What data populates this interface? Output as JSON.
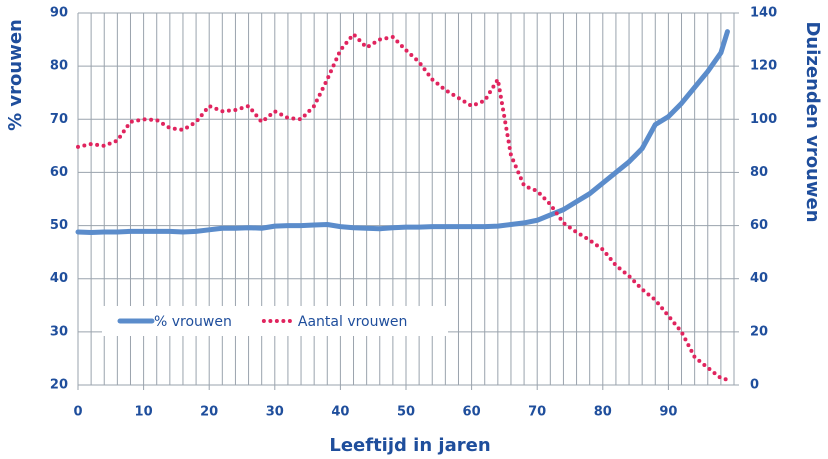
{
  "chart_data": {
    "type": "line",
    "x_label": "Leeftijd in jaren",
    "y_label": "% vrouwen",
    "y2_label": "Duizenden vrouwen",
    "x": [
      0,
      2,
      4,
      6,
      8,
      10,
      12,
      14,
      16,
      18,
      20,
      22,
      24,
      26,
      28,
      30,
      32,
      34,
      36,
      38,
      40,
      42,
      44,
      46,
      48,
      50,
      52,
      54,
      56,
      58,
      60,
      62,
      64,
      66,
      68,
      70,
      72,
      74,
      76,
      78,
      80,
      82,
      84,
      86,
      88,
      90,
      92,
      94,
      96,
      98,
      99
    ],
    "series": [
      {
        "name": "% vrouwen",
        "color": "#5b8ccb",
        "style": "solid",
        "axis": "y",
        "values": [
          48.8,
          48.7,
          48.8,
          48.8,
          48.9,
          48.9,
          48.9,
          48.9,
          48.8,
          48.9,
          49.2,
          49.5,
          49.5,
          49.6,
          49.5,
          49.9,
          50,
          50,
          50.1,
          50.2,
          49.8,
          49.6,
          49.5,
          49.4,
          49.6,
          49.7,
          49.7,
          49.8,
          49.8,
          49.8,
          49.8,
          49.8,
          49.9,
          50.2,
          50.5,
          51,
          52,
          53,
          54.5,
          56,
          58,
          60,
          62,
          64.5,
          69,
          70.5,
          73,
          76,
          79,
          82.5,
          86.5
        ]
      },
      {
        "name": "Aantal vrouwen",
        "color": "#e0245e",
        "style": "dotted",
        "axis": "y2",
        "values": [
          89.6,
          90.7,
          90,
          92,
          99,
          100,
          99.7,
          96.7,
          96,
          99,
          105,
          103,
          103.5,
          105,
          99,
          103,
          100.5,
          100,
          105,
          115,
          126,
          132,
          127,
          130,
          131,
          126,
          121.5,
          115,
          111,
          108,
          105,
          107,
          115,
          86.5,
          75,
          73,
          68,
          61,
          57.5,
          54.5,
          51,
          45,
          41,
          36,
          32,
          26,
          20,
          10.5,
          6.5,
          2.6,
          2
        ]
      }
    ],
    "xlim": [
      0,
      100
    ],
    "xticks": [
      0,
      10,
      20,
      30,
      40,
      50,
      60,
      70,
      80,
      90
    ],
    "x_grid_step": 2,
    "ylim": [
      20,
      90
    ],
    "yticks": [
      20,
      30,
      40,
      50,
      60,
      70,
      80,
      90
    ],
    "y2lim": [
      0,
      140
    ],
    "y2ticks": [
      0,
      20,
      40,
      60,
      80,
      100,
      120,
      140
    ],
    "grid": true,
    "legend": "lower left"
  }
}
